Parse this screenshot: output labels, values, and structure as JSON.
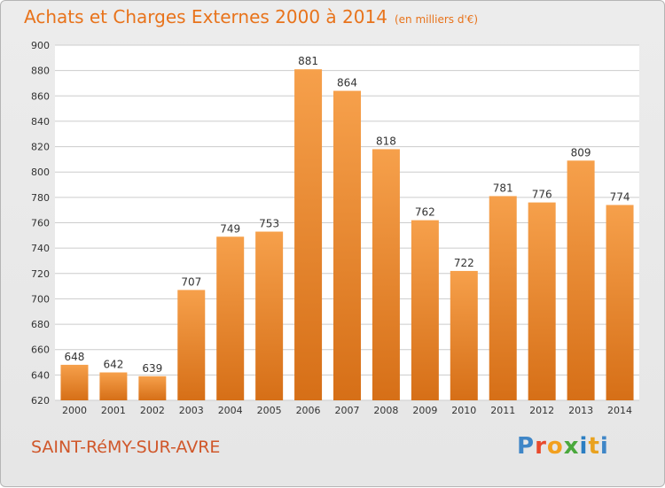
{
  "header": {
    "title": "Achats et Charges Externes 2000 à 2014",
    "subtitle": "(en milliers d'€)"
  },
  "footer": {
    "commune": "SAINT-RéMY-SUR-AVRE",
    "logo": "Proxiti"
  },
  "colors": {
    "bar_light": "#f6a04b",
    "bar_dark": "#d66f17",
    "grid": "#cccccc",
    "title": "#e8731b"
  },
  "chart_data": {
    "type": "bar",
    "title": "Achats et Charges Externes 2000 à 2014",
    "subtitle": "(en milliers d'€)",
    "categories": [
      "2000",
      "2001",
      "2002",
      "2003",
      "2004",
      "2005",
      "2006",
      "2007",
      "2008",
      "2009",
      "2010",
      "2011",
      "2012",
      "2013",
      "2014"
    ],
    "values": [
      648,
      642,
      639,
      707,
      749,
      753,
      881,
      864,
      818,
      762,
      722,
      781,
      776,
      809,
      774
    ],
    "ylim": [
      620,
      900
    ],
    "yticks": [
      620,
      640,
      660,
      680,
      700,
      720,
      740,
      760,
      780,
      800,
      820,
      840,
      860,
      880,
      900
    ],
    "grid": true,
    "data_labels": true
  }
}
